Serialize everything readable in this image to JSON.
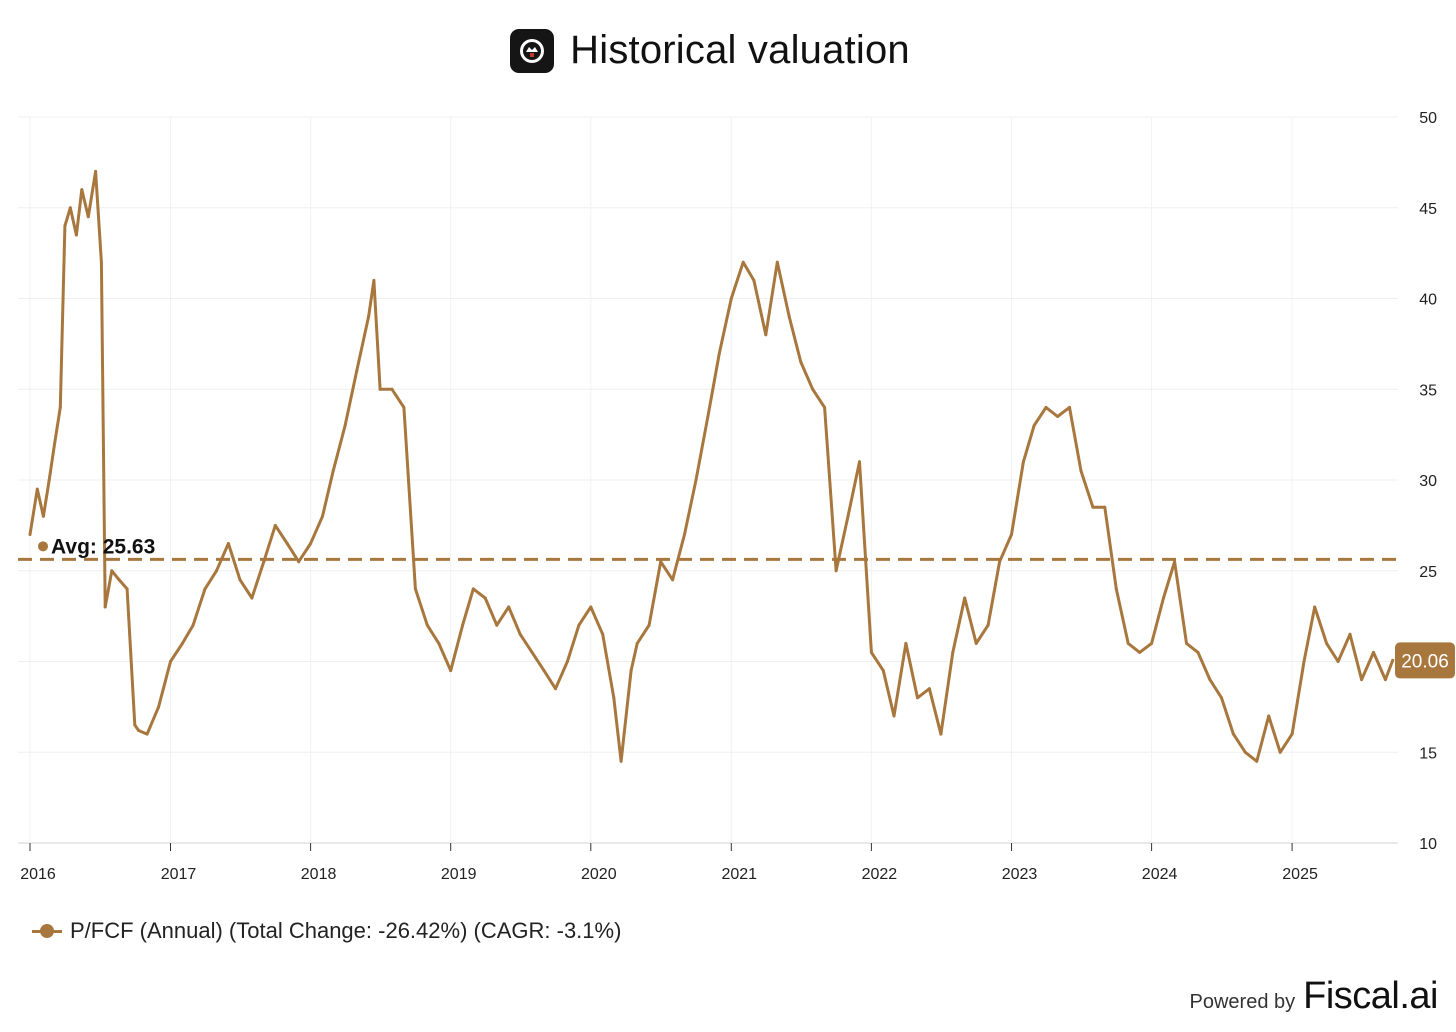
{
  "header": {
    "title": "Historical valuation",
    "logo_icon": "brand-logo-icon"
  },
  "chart_data": {
    "type": "line",
    "title": "Historical valuation",
    "xlabel": "",
    "ylabel": "",
    "ylim": [
      10,
      50
    ],
    "xlim": [
      "2016-01-01",
      "2025-10-01"
    ],
    "x_ticks": [
      "2016",
      "2017",
      "2018",
      "2019",
      "2020",
      "2021",
      "2022",
      "2023",
      "2024",
      "2025"
    ],
    "y_ticks": [
      10,
      15,
      20,
      25,
      30,
      35,
      40,
      45,
      50
    ],
    "y_axis_side": "right",
    "grid": true,
    "legend_position": "bottom-left",
    "series": [
      {
        "name": "P/FCF (Annual) (Total Change: -26.42%) (CAGR: -3.1%)",
        "color": "#a8773e",
        "x": [
          "2016-01-01",
          "2016-01-20",
          "2016-02-05",
          "2016-02-20",
          "2016-03-05",
          "2016-03-20",
          "2016-04-01",
          "2016-04-15",
          "2016-05-01",
          "2016-05-15",
          "2016-06-01",
          "2016-06-20",
          "2016-07-05",
          "2016-07-15",
          "2016-08-01",
          "2016-08-20",
          "2016-09-10",
          "2016-09-30",
          "2016-10-10",
          "2016-11-01",
          "2016-12-01",
          "2017-01-01",
          "2017-02-01",
          "2017-03-01",
          "2017-04-01",
          "2017-05-01",
          "2017-06-01",
          "2017-07-01",
          "2017-08-01",
          "2017-09-01",
          "2017-10-01",
          "2017-11-01",
          "2017-12-01",
          "2018-01-01",
          "2018-02-01",
          "2018-03-01",
          "2018-04-01",
          "2018-05-01",
          "2018-06-01",
          "2018-06-15",
          "2018-07-01",
          "2018-08-01",
          "2018-09-01",
          "2018-10-01",
          "2018-11-01",
          "2018-12-01",
          "2019-01-01",
          "2019-02-01",
          "2019-03-01",
          "2019-04-01",
          "2019-05-01",
          "2019-06-01",
          "2019-07-01",
          "2019-08-01",
          "2019-09-01",
          "2019-10-01",
          "2019-11-01",
          "2019-12-01",
          "2020-01-01",
          "2020-02-01",
          "2020-03-01",
          "2020-03-20",
          "2020-04-15",
          "2020-05-01",
          "2020-06-01",
          "2020-07-01",
          "2020-08-01",
          "2020-09-01",
          "2020-10-01",
          "2020-11-01",
          "2020-12-01",
          "2021-01-01",
          "2021-02-01",
          "2021-03-01",
          "2021-04-01",
          "2021-05-01",
          "2021-06-01",
          "2021-07-01",
          "2021-08-01",
          "2021-09-01",
          "2021-10-01",
          "2021-11-01",
          "2021-12-01",
          "2022-01-01",
          "2022-02-01",
          "2022-03-01",
          "2022-04-01",
          "2022-05-01",
          "2022-06-01",
          "2022-07-01",
          "2022-08-01",
          "2022-09-01",
          "2022-10-01",
          "2022-11-01",
          "2022-12-01",
          "2023-01-01",
          "2023-02-01",
          "2023-03-01",
          "2023-04-01",
          "2023-05-01",
          "2023-06-01",
          "2023-07-01",
          "2023-08-01",
          "2023-09-01",
          "2023-10-01",
          "2023-11-01",
          "2023-12-01",
          "2024-01-01",
          "2024-02-01",
          "2024-03-01",
          "2024-04-01",
          "2024-05-01",
          "2024-06-01",
          "2024-07-01",
          "2024-08-01",
          "2024-09-01",
          "2024-10-01",
          "2024-11-01",
          "2024-12-01",
          "2025-01-01",
          "2025-02-01",
          "2025-03-01",
          "2025-04-01",
          "2025-05-01",
          "2025-06-01",
          "2025-07-01",
          "2025-08-01",
          "2025-09-01",
          "2025-09-20"
        ],
        "values": [
          27,
          29.5,
          28,
          30,
          32,
          34,
          44,
          45,
          43.5,
          46,
          44.5,
          47,
          42,
          23,
          25,
          24.5,
          24,
          16.5,
          16.2,
          16,
          17.5,
          20,
          21,
          22,
          24,
          25,
          26.5,
          24.5,
          23.5,
          25.5,
          27.5,
          26.5,
          25.5,
          26.5,
          28,
          30.5,
          33,
          36,
          39,
          41,
          35,
          35,
          34,
          24,
          22,
          21,
          19.5,
          22,
          24,
          23.5,
          22,
          23,
          21.5,
          20.5,
          19.5,
          18.5,
          20,
          22,
          23,
          21.5,
          18,
          14.5,
          19.5,
          21,
          22,
          25.5,
          24.5,
          27,
          30,
          33.5,
          37,
          40,
          42,
          41,
          38,
          42,
          39,
          36.5,
          35,
          34,
          25,
          28,
          31,
          20.5,
          19.5,
          17,
          21,
          18,
          18.5,
          16,
          20.5,
          23.5,
          21,
          22,
          25.5,
          27,
          31,
          33,
          34,
          33.5,
          34,
          30.5,
          28.5,
          28.5,
          24,
          21,
          20.5,
          21,
          23.5,
          25.5,
          21,
          20.5,
          19,
          18,
          16,
          15,
          14.5,
          17,
          15,
          16,
          20,
          23,
          21,
          20,
          21.5,
          19,
          20.5,
          19,
          20.06
        ],
        "last_value_label": "20.06"
      }
    ],
    "reference_line": {
      "label": "Avg: 25.63",
      "value": 25.63,
      "style": "dashed"
    }
  },
  "legend": {
    "label": "P/FCF (Annual) (Total Change: -26.42%) (CAGR: -3.1%)"
  },
  "footer": {
    "powered_by": "Powered by",
    "brand": "Fiscal.ai"
  }
}
